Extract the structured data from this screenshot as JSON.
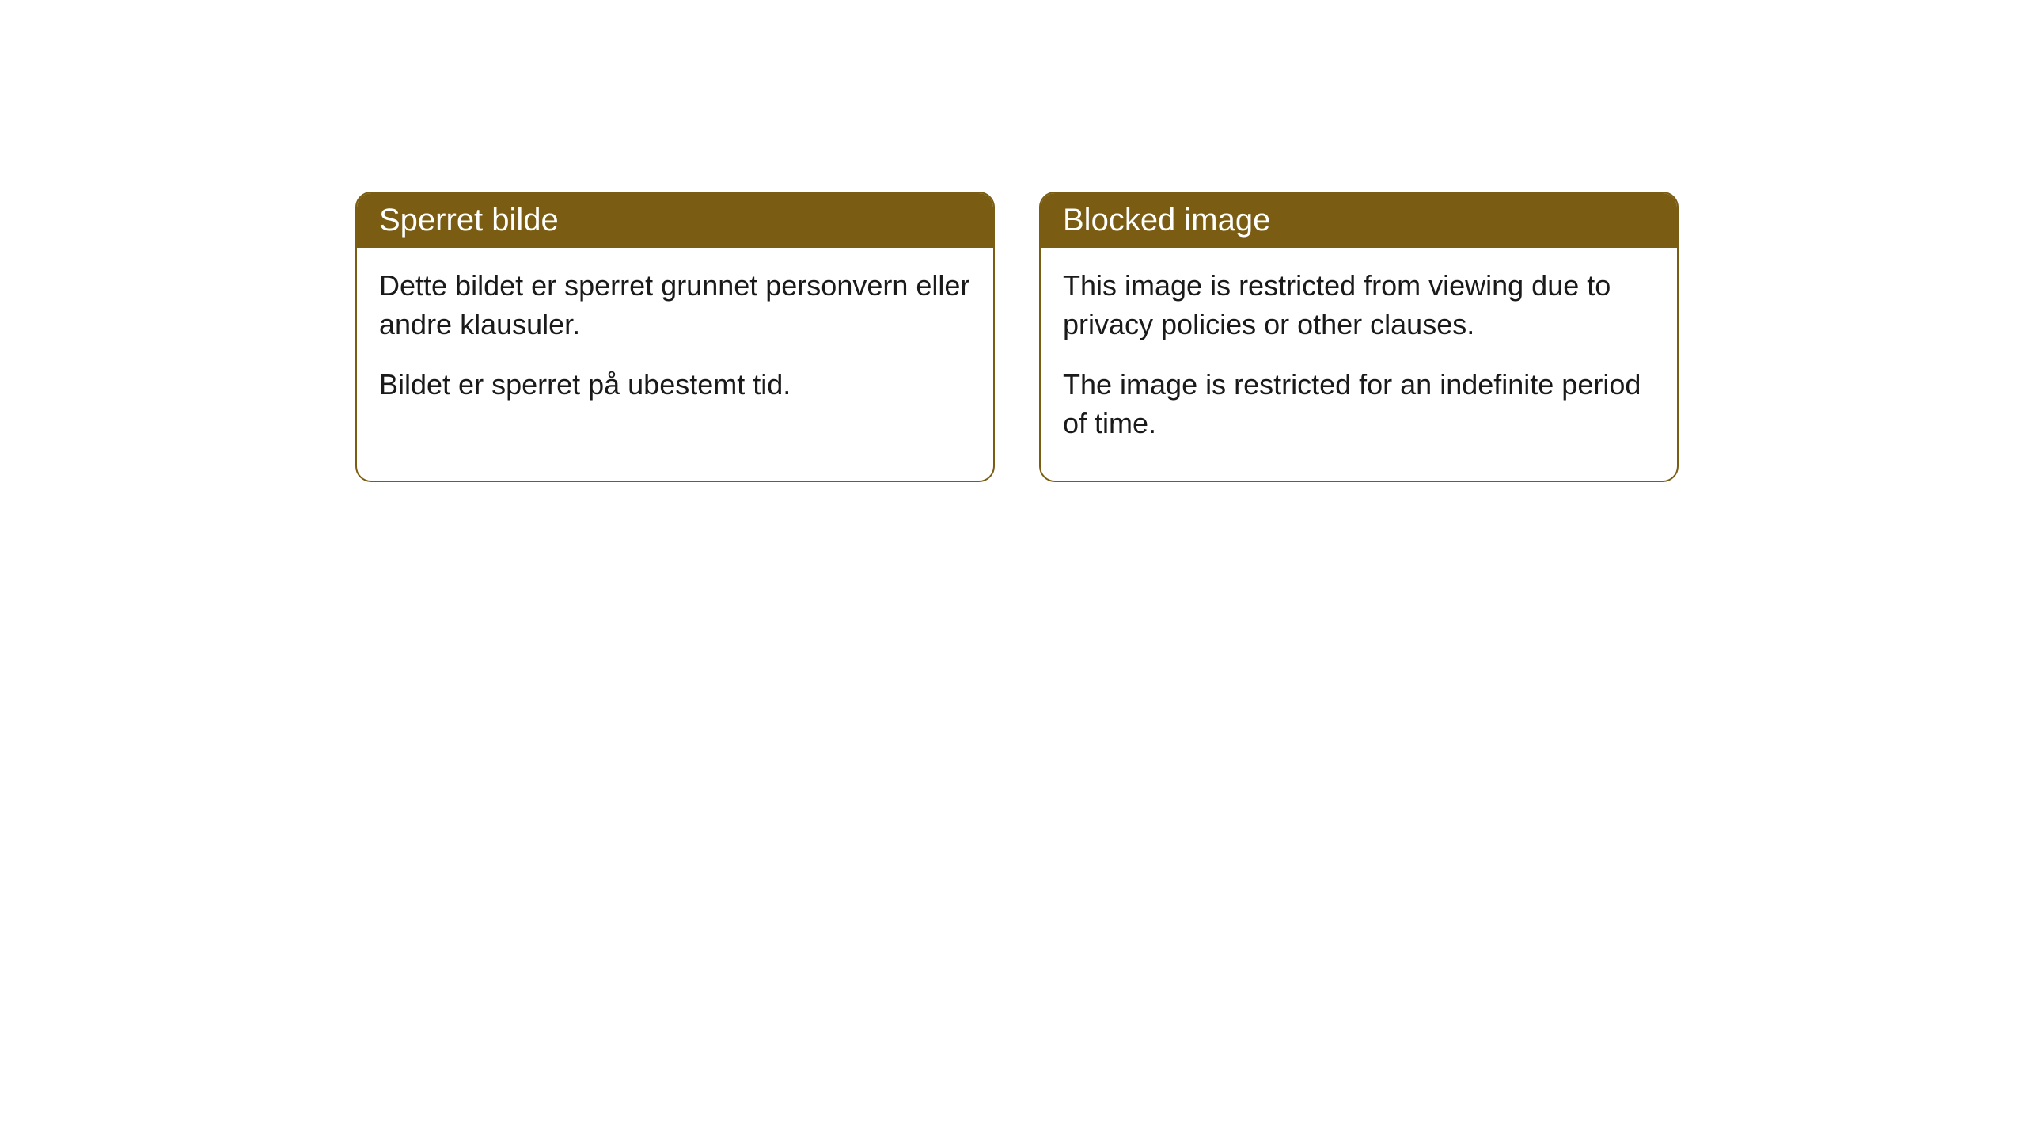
{
  "cards": [
    {
      "title": "Sperret bilde",
      "paragraph1": "Dette bildet er sperret grunnet personvern eller andre klausuler.",
      "paragraph2": "Bildet er sperret på ubestemt tid."
    },
    {
      "title": "Blocked image",
      "paragraph1": "This image is restricted from viewing due to privacy policies or other clauses.",
      "paragraph2": "The image is restricted for an indefinite period of time."
    }
  ],
  "styling": {
    "header_bg_color": "#7a5d13",
    "header_text_color": "#ffffff",
    "border_color": "#7a5d13",
    "body_bg_color": "#ffffff",
    "body_text_color": "#1a1a1a",
    "border_radius": "20px",
    "title_fontsize": 40,
    "body_fontsize": 36
  }
}
